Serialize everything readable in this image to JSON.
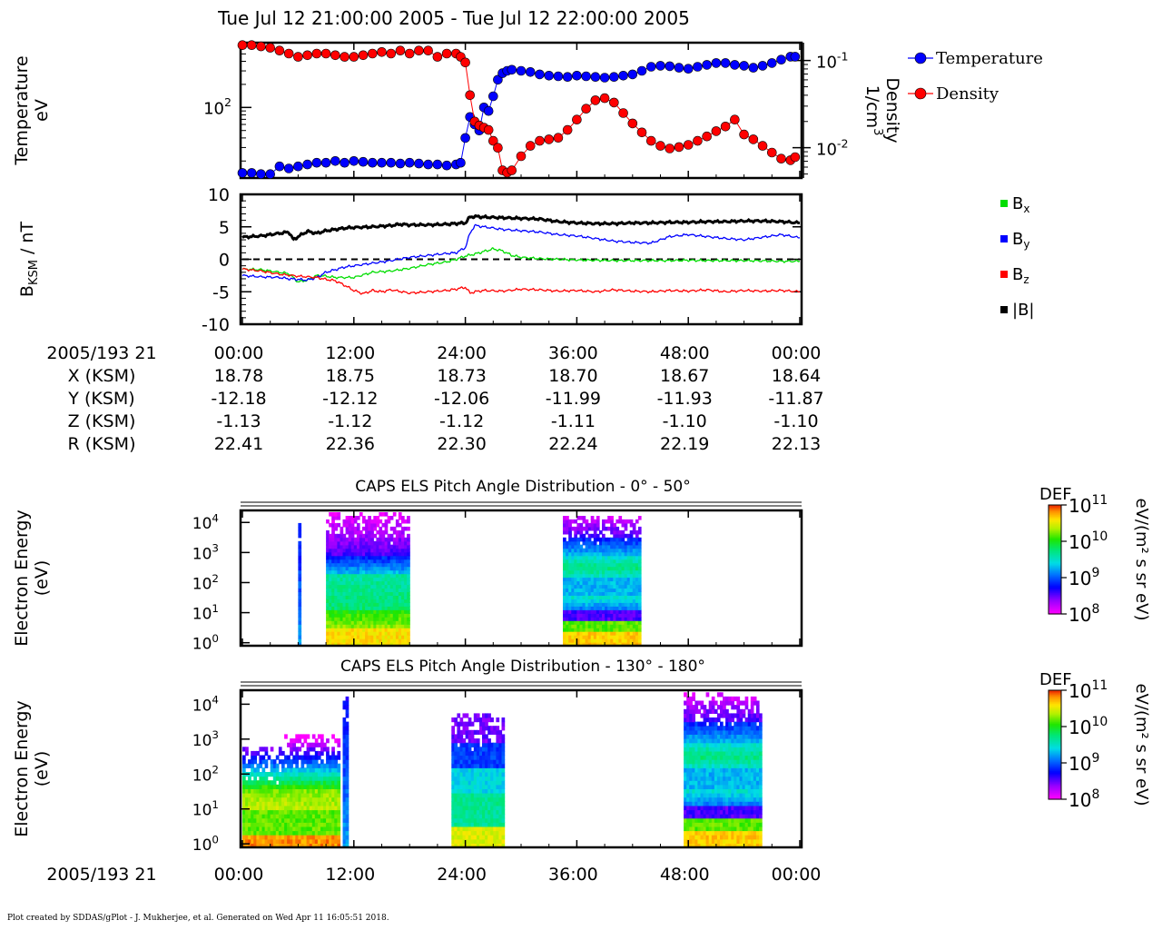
{
  "title": "Tue Jul 12 21:00:00 2005 - Tue Jul 12 22:00:00 2005",
  "footer": "Plot created by SDDAS/gPlot - J. Mukherjee, et al.  Generated on Wed Apr 11 16:05:51 2018.",
  "colors": {
    "temperature": "#0000ff",
    "density": "#ff0000",
    "bx": "#00dd00",
    "by": "#0000ff",
    "bz": "#ff0000",
    "btot": "#000000"
  },
  "chart_data": [
    {
      "type": "scatter",
      "name": "plasma-moments",
      "x_unit": "minutes after 21:00",
      "xlim": [
        0,
        60
      ],
      "ylabel_left": [
        "Temperature",
        "eV"
      ],
      "left_ticks": [
        {
          "value": 100,
          "label_base": "10",
          "label_exp": "2"
        }
      ],
      "ylim_left_log": [
        12,
        700
      ],
      "ylabel_right": [
        "Density",
        "1/cm",
        "3"
      ],
      "right_ticks": [
        {
          "value": 0.1,
          "label_base": "10",
          "label_exp": "-1"
        },
        {
          "value": 0.01,
          "label_base": "10",
          "label_exp": "-2"
        }
      ],
      "ylim_right_log": [
        0.0045,
        0.16
      ],
      "legend": [
        {
          "label": "Temperature",
          "color": "#0000ff"
        },
        {
          "label": "Density",
          "color": "#ff0000"
        }
      ],
      "series": [
        {
          "name": "Temperature",
          "axis": "left",
          "color": "#0000ff",
          "x": [
            0,
            1,
            2,
            3,
            4,
            5,
            6,
            7,
            8,
            9,
            10,
            11,
            12,
            13,
            14,
            15,
            16,
            17,
            18,
            19,
            20,
            21,
            22,
            23,
            23.5,
            24,
            24.5,
            25,
            25.5,
            26,
            26.5,
            27,
            27.5,
            28,
            28.5,
            29,
            30,
            31,
            32,
            33,
            34,
            35,
            36,
            37,
            38,
            39,
            40,
            41,
            42,
            43,
            44,
            45,
            46,
            47,
            48,
            49,
            50,
            51,
            52,
            53,
            54,
            55,
            56,
            57,
            58,
            59,
            59.5
          ],
          "values": [
            14,
            14,
            13.5,
            13.5,
            17,
            16,
            17,
            18,
            19,
            19,
            20,
            19,
            20,
            19.5,
            19,
            19,
            19,
            18.5,
            19,
            18.5,
            18,
            18,
            17.5,
            18,
            19,
            40,
            75,
            60,
            50,
            100,
            90,
            140,
            230,
            280,
            300,
            310,
            300,
            290,
            270,
            260,
            255,
            250,
            260,
            255,
            250,
            245,
            250,
            260,
            270,
            300,
            340,
            350,
            345,
            330,
            320,
            340,
            360,
            380,
            380,
            360,
            350,
            330,
            350,
            380,
            420,
            460,
            460
          ]
        },
        {
          "name": "Density",
          "axis": "right",
          "color": "#ff0000",
          "x": [
            0,
            1,
            2,
            3,
            4,
            5,
            6,
            7,
            8,
            9,
            10,
            11,
            12,
            13,
            14,
            15,
            16,
            17,
            18,
            19,
            20,
            21,
            22,
            23,
            23.5,
            24,
            24.5,
            25,
            25.5,
            26,
            26.5,
            27,
            27.5,
            28,
            28.5,
            29,
            30,
            31,
            32,
            33,
            34,
            35,
            36,
            37,
            38,
            39,
            40,
            41,
            42,
            43,
            44,
            45,
            46,
            47,
            48,
            49,
            50,
            51,
            52,
            53,
            54,
            55,
            56,
            57,
            58,
            59,
            59.5
          ],
          "values": [
            0.15,
            0.15,
            0.145,
            0.14,
            0.13,
            0.12,
            0.11,
            0.115,
            0.12,
            0.12,
            0.115,
            0.11,
            0.11,
            0.115,
            0.12,
            0.125,
            0.12,
            0.13,
            0.12,
            0.13,
            0.13,
            0.11,
            0.12,
            0.12,
            0.11,
            0.095,
            0.04,
            0.02,
            0.018,
            0.017,
            0.016,
            0.012,
            0.01,
            0.0055,
            0.0052,
            0.0055,
            0.008,
            0.0105,
            0.012,
            0.0125,
            0.013,
            0.016,
            0.021,
            0.028,
            0.035,
            0.037,
            0.033,
            0.025,
            0.019,
            0.015,
            0.012,
            0.0105,
            0.0098,
            0.0102,
            0.0108,
            0.012,
            0.0135,
            0.0155,
            0.0175,
            0.021,
            0.0142,
            0.0125,
            0.0105,
            0.0088,
            0.0075,
            0.0072,
            0.0078
          ]
        }
      ]
    },
    {
      "type": "line",
      "name": "magnetic-field",
      "x_unit": "minutes after 21:00",
      "xlim": [
        0,
        60
      ],
      "ylim": [
        -10,
        10
      ],
      "yticks": [
        10,
        5,
        0,
        -5,
        -10
      ],
      "ylabel": {
        "prefix": "B",
        "sub": "KSM",
        "suffix": " / nT"
      },
      "zero_line": "dashed",
      "legend": [
        {
          "key": "bx",
          "label": "B",
          "sub": "x",
          "color": "#00dd00"
        },
        {
          "key": "by",
          "label": "B",
          "sub": "y",
          "color": "#0000ff"
        },
        {
          "key": "bz",
          "label": "B",
          "sub": "z",
          "color": "#ff0000"
        },
        {
          "key": "btot",
          "label": "|B|",
          "sub": "",
          "color": "#000000"
        }
      ],
      "series": [
        {
          "name": "Bx",
          "key": "bx",
          "color": "#00dd00",
          "x": [
            0,
            2,
            4,
            5,
            6,
            7,
            8,
            9,
            10,
            12,
            14,
            16,
            18,
            20,
            22,
            23,
            24,
            25,
            26,
            27,
            28,
            29,
            30,
            32,
            34,
            36,
            38,
            40,
            42,
            44,
            46,
            48,
            50,
            52,
            54,
            56,
            58,
            60
          ],
          "values": [
            -1.5,
            -1.6,
            -2,
            -2.2,
            -3.5,
            -3.2,
            -2.5,
            -2.6,
            -2.8,
            -2.8,
            -2,
            -1.8,
            -1.4,
            -0.8,
            -0.4,
            0,
            0.5,
            0.8,
            1.2,
            1.6,
            1.3,
            0.6,
            0.3,
            0.1,
            0,
            -0.1,
            -0.15,
            -0.2,
            -0.2,
            -0.2,
            -0.2,
            -0.15,
            -0.2,
            -0.2,
            -0.2,
            -0.25,
            -0.3,
            -0.3
          ]
        },
        {
          "name": "By",
          "key": "by",
          "color": "#0000ff",
          "x": [
            0,
            2,
            4,
            5,
            6,
            7,
            8,
            9,
            10,
            11,
            12,
            14,
            16,
            18,
            20,
            22,
            23,
            24,
            24.5,
            25,
            26,
            28,
            30,
            32,
            34,
            36,
            38,
            40,
            42,
            44,
            46,
            48,
            50,
            52,
            54,
            56,
            58,
            60
          ],
          "values": [
            -2.5,
            -2.7,
            -2.8,
            -3,
            -3.1,
            -3.2,
            -2.8,
            -2,
            -1.6,
            -1.2,
            -1,
            -0.6,
            -0.2,
            0.3,
            0.6,
            0.9,
            1,
            1.8,
            4,
            5.2,
            5,
            4.6,
            4.4,
            4.2,
            3.8,
            3.6,
            3.2,
            2.8,
            2.6,
            2.5,
            3.5,
            3.8,
            3.5,
            3.2,
            3.0,
            3.4,
            3.8,
            3.3
          ]
        },
        {
          "name": "Bz",
          "key": "bz",
          "color": "#ff0000",
          "x": [
            0,
            2,
            4,
            6,
            8,
            9,
            10,
            11,
            12,
            13,
            14,
            15,
            16,
            18,
            20,
            22,
            23,
            24,
            24.5,
            25,
            26,
            28,
            30,
            32,
            34,
            36,
            38,
            40,
            42,
            44,
            46,
            48,
            50,
            52,
            54,
            56,
            58,
            60
          ],
          "values": [
            -1.5,
            -1.8,
            -2.3,
            -2.6,
            -2.8,
            -3.1,
            -3.3,
            -4,
            -4.8,
            -5.3,
            -4.8,
            -5,
            -4.7,
            -5.2,
            -5,
            -4.8,
            -4.6,
            -4.3,
            -5.2,
            -5,
            -4.8,
            -4.9,
            -4.6,
            -4.7,
            -4.9,
            -4.8,
            -5,
            -4.7,
            -4.9,
            -5,
            -4.8,
            -4.9,
            -4.7,
            -5,
            -4.8,
            -4.9,
            -4.8,
            -5
          ]
        },
        {
          "name": "|B|",
          "key": "btot",
          "color": "#000000",
          "x": [
            0,
            2,
            4,
            5,
            5.5,
            6,
            7,
            8,
            9,
            10,
            11,
            12,
            14,
            16,
            17,
            18,
            20,
            22,
            23,
            24,
            24.5,
            25,
            26,
            28,
            30,
            32,
            34,
            36,
            38,
            40,
            42,
            44,
            46,
            48,
            50,
            52,
            54,
            56,
            58,
            60
          ],
          "values": [
            3.4,
            3.6,
            4,
            4.2,
            3,
            3.5,
            4.3,
            4,
            4.4,
            4.6,
            4.8,
            4.9,
            5,
            5.2,
            5.4,
            5.3,
            5.3,
            5.4,
            5.5,
            5.6,
            6.5,
            6.6,
            6.5,
            6.4,
            6.3,
            6.2,
            5.8,
            5.6,
            5.5,
            5.5,
            5.6,
            5.6,
            5.7,
            5.7,
            5.8,
            5.8,
            5.9,
            5.9,
            5.8,
            5.6
          ]
        }
      ]
    },
    {
      "type": "heatmap",
      "name": "els-pitch-0-50",
      "title": "CAPS ELS Pitch Angle Distribution - 0° - 50°",
      "ylabel": [
        "Electron Energy",
        "(eV)"
      ],
      "x_unit": "minutes after 21:00",
      "xlim": [
        0,
        60
      ],
      "ylim_log10": [
        -0.1,
        4.4
      ],
      "yticks": [
        {
          "base": "10",
          "exp": "4"
        },
        {
          "base": "10",
          "exp": "3"
        },
        {
          "base": "10",
          "exp": "2"
        },
        {
          "base": "10",
          "exp": "1"
        },
        {
          "base": "10",
          "exp": "0"
        }
      ],
      "colorbar": {
        "title": "DEF",
        "unit": "eV/(m² s sr eV)",
        "range_log10": [
          8,
          11
        ],
        "ticks": [
          {
            "base": "10",
            "exp": "11"
          },
          {
            "base": "10",
            "exp": "10"
          },
          {
            "base": "10",
            "exp": "9"
          },
          {
            "base": "10",
            "exp": "8"
          }
        ]
      },
      "blocks": [
        {
          "x0": 6.0,
          "x1": 6.3,
          "pattern": "narrow",
          "top_log": 4.3
        },
        {
          "x0": 9.0,
          "x1": 18.0,
          "pattern": "magnetosheath",
          "top_log": 4.3
        },
        {
          "x0": 34.5,
          "x1": 42.8,
          "pattern": "banded",
          "top_log": 4.2
        }
      ]
    },
    {
      "type": "heatmap",
      "name": "els-pitch-130-180",
      "title": "CAPS ELS Pitch Angle Distribution - 130° - 180°",
      "ylabel": [
        "Electron Energy",
        "(eV)"
      ],
      "x_unit": "minutes after 21:00",
      "xlim": [
        0,
        60
      ],
      "ylim_log10": [
        -0.1,
        4.4
      ],
      "yticks": [
        {
          "base": "10",
          "exp": "4"
        },
        {
          "base": "10",
          "exp": "3"
        },
        {
          "base": "10",
          "exp": "2"
        },
        {
          "base": "10",
          "exp": "1"
        },
        {
          "base": "10",
          "exp": "0"
        }
      ],
      "colorbar": {
        "title": "DEF",
        "unit": "eV/(m² s sr eV)",
        "range_log10": [
          8,
          11
        ],
        "ticks": [
          {
            "base": "10",
            "exp": "11"
          },
          {
            "base": "10",
            "exp": "10"
          },
          {
            "base": "10",
            "exp": "9"
          },
          {
            "base": "10",
            "exp": "8"
          }
        ]
      },
      "blocks": [
        {
          "x0": 0.0,
          "x1": 4.2,
          "pattern": "hot-low",
          "top_log": 2.7
        },
        {
          "x0": 4.2,
          "x1": 10.3,
          "pattern": "hot-low",
          "top_log": 3.1
        },
        {
          "x0": 10.8,
          "x1": 11.3,
          "pattern": "narrow",
          "top_log": 4.3
        },
        {
          "x0": 22.5,
          "x1": 28.2,
          "pattern": "mixed",
          "top_log": 3.7
        },
        {
          "x0": 47.5,
          "x1": 55.8,
          "pattern": "banded",
          "top_log": 4.3
        }
      ]
    }
  ],
  "time_axis": {
    "ticks": [
      "00:00",
      "12:00",
      "24:00",
      "36:00",
      "48:00",
      "00:00"
    ],
    "tick_minutes": [
      0,
      12,
      24,
      36,
      48,
      60
    ],
    "date_label": "2005/193 21"
  },
  "ephemeris": {
    "rows": [
      {
        "label": "X (KSM)",
        "values": [
          "18.78",
          "18.75",
          "18.73",
          "18.70",
          "18.67",
          "18.64"
        ]
      },
      {
        "label": "Y (KSM)",
        "values": [
          "-12.18",
          "-12.12",
          "-12.06",
          "-11.99",
          "-11.93",
          "-11.87"
        ]
      },
      {
        "label": "Z (KSM)",
        "values": [
          "-1.13",
          "-1.12",
          "-1.12",
          "-1.11",
          "-1.10",
          "-1.10"
        ]
      },
      {
        "label": "R (KSM)",
        "values": [
          "22.41",
          "22.36",
          "22.30",
          "22.24",
          "22.19",
          "22.13"
        ]
      }
    ]
  }
}
